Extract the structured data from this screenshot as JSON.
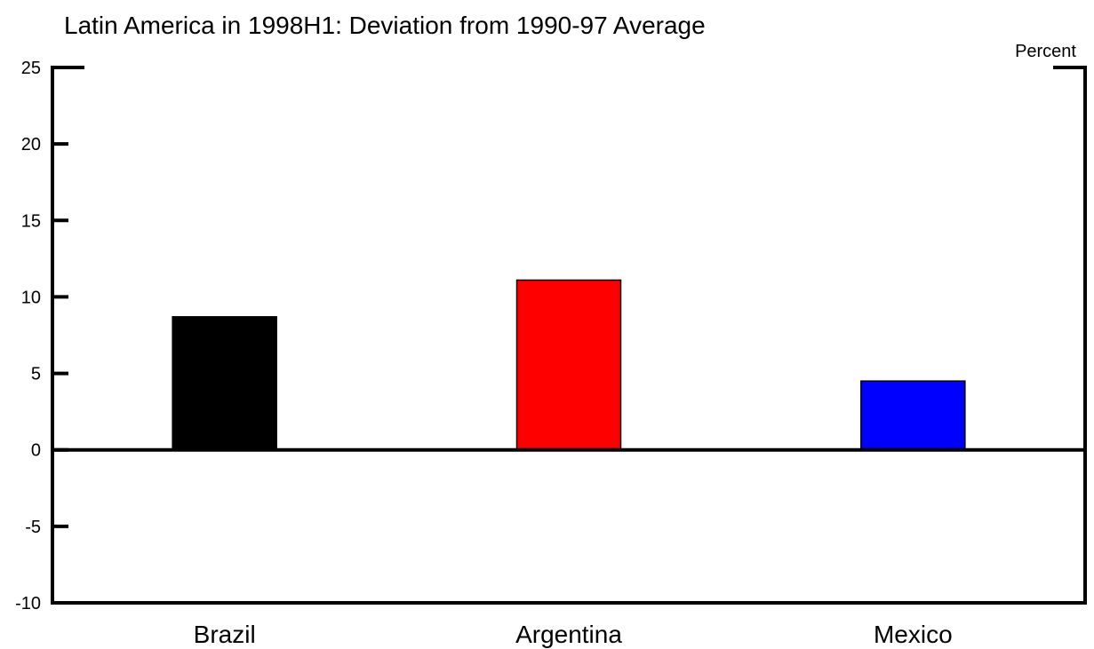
{
  "chart_data": {
    "type": "bar",
    "title": "Latin America in 1998H1: Deviation from 1990-97 Average",
    "unit_label": "Percent",
    "categories": [
      "Brazil",
      "Argentina",
      "Mexico"
    ],
    "values": [
      8.7,
      11.1,
      4.5
    ],
    "colors": [
      "#000000",
      "#ff0000",
      "#0000ff"
    ],
    "ylim": [
      -10,
      25
    ],
    "yticks": [
      25,
      20,
      15,
      10,
      5,
      0,
      -5,
      -10
    ],
    "ytick_labels": [
      "25",
      "20",
      "15",
      "10",
      "5",
      "0",
      "-5",
      "-10"
    ],
    "grid": false,
    "legend": "none"
  }
}
